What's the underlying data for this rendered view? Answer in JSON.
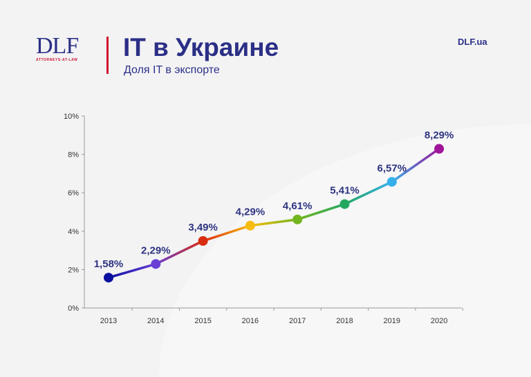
{
  "header": {
    "logo": "DLF",
    "logo_sub": "ATTORNEYS-AT-LAW",
    "title": "IT в Украине",
    "subtitle": "Доля IT в экспорте",
    "site": "DLF.ua"
  },
  "chart_data": {
    "type": "line",
    "title": "IT в Украине",
    "subtitle": "Доля IT в экспорте",
    "categories": [
      "2013",
      "2014",
      "2015",
      "2016",
      "2017",
      "2018",
      "2019",
      "2020"
    ],
    "values": [
      1.58,
      2.29,
      3.49,
      4.29,
      4.61,
      5.41,
      6.57,
      8.29
    ],
    "data_labels": [
      "1,58%",
      "2,29%",
      "3,49%",
      "4,29%",
      "4,61%",
      "5,41%",
      "6,57%",
      "8,29%"
    ],
    "point_colors": [
      "#0a0fa0",
      "#6a3fd6",
      "#d92b0f",
      "#f7bd10",
      "#73b51e",
      "#24a860",
      "#35b0ea",
      "#a0169a"
    ],
    "ylim": [
      0,
      10
    ],
    "yticks": [
      "0%",
      "2%",
      "4%",
      "6%",
      "8%",
      "10%"
    ],
    "label_color": "#2e3480",
    "grid": false,
    "legend": "none"
  }
}
